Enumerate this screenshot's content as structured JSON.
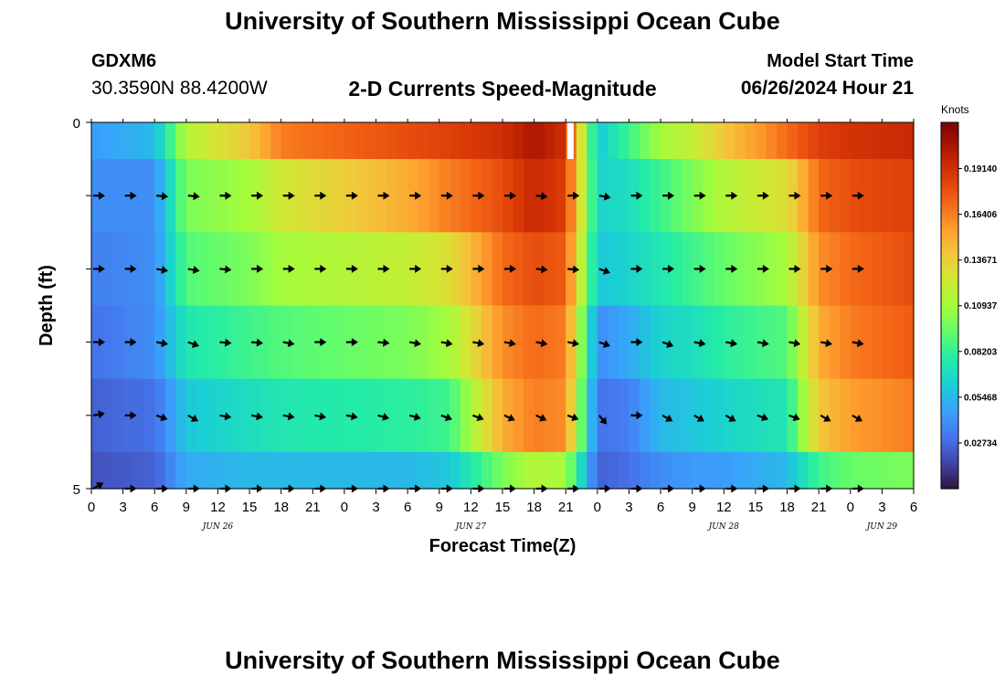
{
  "header": {
    "title": "University of Southern Mississippi Ocean Cube",
    "station": "GDXM6",
    "coordinates": "30.3590N  88.4200W",
    "subtitle": "2-D Currents Speed-Magnitude",
    "model_start_label": "Model Start Time",
    "model_start_value": "06/26/2024 Hour 21"
  },
  "footer": {
    "title": "University of Southern Mississippi Ocean Cube"
  },
  "chart_data": {
    "type": "heatmap",
    "title": "2-D Currents Speed-Magnitude",
    "xlabel": "Forecast Time(Z)",
    "ylabel": "Depth (ft)",
    "x_ticks": [
      "0",
      "3",
      "6",
      "9",
      "12",
      "15",
      "18",
      "21",
      "0",
      "3",
      "6",
      "9",
      "12",
      "15",
      "18",
      "21",
      "0",
      "3",
      "6",
      "9",
      "12",
      "15",
      "18",
      "21",
      "0",
      "3",
      "6"
    ],
    "x_range_hours": [
      0,
      78
    ],
    "date_labels": [
      {
        "label": "JUN 26",
        "hour": 12
      },
      {
        "label": "JUN 27",
        "hour": 36
      },
      {
        "label": "JUN 28",
        "hour": 60
      },
      {
        "label": "JUN 29",
        "hour": 75
      }
    ],
    "y_ticks": [
      "0",
      "5"
    ],
    "y_range_ft": [
      0,
      5
    ],
    "depth_levels_ft": [
      0,
      1,
      2,
      3,
      4,
      5
    ],
    "colorbar": {
      "label": "Knots",
      "ticks": [
        "0.19140",
        "0.16406",
        "0.13671",
        "0.10937",
        "0.08203",
        "0.05468",
        "0.02734"
      ],
      "tick_values": [
        0.1914,
        0.16406,
        0.13671,
        0.10937,
        0.08203,
        0.05468,
        0.02734
      ],
      "range": [
        0.0,
        0.219
      ],
      "colormap": [
        "#30123b",
        "#4145ab",
        "#4675ed",
        "#39a2fc",
        "#1bcfd4",
        "#24eca6",
        "#61fc6c",
        "#a4fc3b",
        "#d1e834",
        "#f3c63a",
        "#fe9b2d",
        "#f36315",
        "#d93806",
        "#b11901",
        "#7a0403"
      ]
    },
    "time_nodes_hours": [
      0,
      6,
      9,
      15,
      18,
      30,
      34,
      39,
      42,
      45,
      48,
      51,
      54,
      57,
      60,
      66,
      69,
      72,
      78
    ],
    "speed_knots_by_depth": [
      [
        0.045,
        0.055,
        0.115,
        0.14,
        0.165,
        0.18,
        0.185,
        0.192,
        0.205,
        0.192,
        0.06,
        0.085,
        0.11,
        0.12,
        0.14,
        0.17,
        0.185,
        0.19,
        0.195
      ],
      [
        0.04,
        0.04,
        0.1,
        0.11,
        0.125,
        0.15,
        0.165,
        0.18,
        0.195,
        0.185,
        0.065,
        0.07,
        0.085,
        0.1,
        0.115,
        0.13,
        0.17,
        0.18,
        0.185
      ],
      [
        0.035,
        0.04,
        0.09,
        0.1,
        0.11,
        0.12,
        0.13,
        0.17,
        0.18,
        0.175,
        0.06,
        0.065,
        0.075,
        0.085,
        0.095,
        0.11,
        0.16,
        0.17,
        0.18
      ],
      [
        0.03,
        0.04,
        0.075,
        0.085,
        0.09,
        0.1,
        0.11,
        0.16,
        0.17,
        0.165,
        0.04,
        0.05,
        0.065,
        0.07,
        0.08,
        0.09,
        0.15,
        0.165,
        0.175
      ],
      [
        0.025,
        0.03,
        0.06,
        0.07,
        0.075,
        0.08,
        0.085,
        0.15,
        0.165,
        0.16,
        0.03,
        0.035,
        0.055,
        0.06,
        0.065,
        0.075,
        0.14,
        0.155,
        0.165
      ],
      [
        0.02,
        0.025,
        0.05,
        0.055,
        0.055,
        0.055,
        0.06,
        0.1,
        0.115,
        0.11,
        0.025,
        0.03,
        0.04,
        0.045,
        0.045,
        0.055,
        0.085,
        0.095,
        0.1
      ]
    ],
    "no_data_marker_hour": 45.4,
    "vector_hours": [
      0,
      3,
      6,
      9,
      12,
      15,
      18,
      21,
      24,
      27,
      30,
      33,
      36,
      39,
      42,
      45,
      48,
      51,
      54,
      57,
      60,
      63,
      66,
      69,
      72
    ],
    "vector_directions_deg": [
      [
        0,
        0,
        0,
        0,
        0,
        0,
        0,
        0,
        0,
        0,
        0,
        0,
        0,
        0,
        0,
        0,
        0,
        0,
        0,
        0,
        0,
        0,
        0,
        0,
        0
      ],
      [
        0,
        0,
        5,
        5,
        0,
        0,
        0,
        0,
        0,
        0,
        0,
        0,
        0,
        0,
        5,
        0,
        10,
        0,
        0,
        0,
        0,
        0,
        0,
        0,
        0
      ],
      [
        0,
        0,
        10,
        10,
        5,
        0,
        0,
        0,
        0,
        0,
        0,
        0,
        0,
        0,
        5,
        5,
        20,
        0,
        0,
        0,
        0,
        0,
        0,
        0,
        0
      ],
      [
        0,
        0,
        10,
        20,
        5,
        5,
        10,
        0,
        0,
        5,
        10,
        10,
        10,
        10,
        10,
        10,
        20,
        0,
        20,
        10,
        10,
        10,
        10,
        10,
        10
      ],
      [
        -10,
        0,
        20,
        30,
        10,
        10,
        10,
        10,
        10,
        15,
        15,
        20,
        20,
        25,
        25,
        20,
        50,
        0,
        30,
        30,
        30,
        20,
        20,
        30,
        30
      ],
      [
        -30,
        0,
        0,
        0,
        0,
        0,
        0,
        0,
        0,
        0,
        0,
        0,
        0,
        0,
        0,
        0,
        0,
        0,
        0,
        0,
        0,
        0,
        0,
        0,
        0
      ]
    ]
  }
}
